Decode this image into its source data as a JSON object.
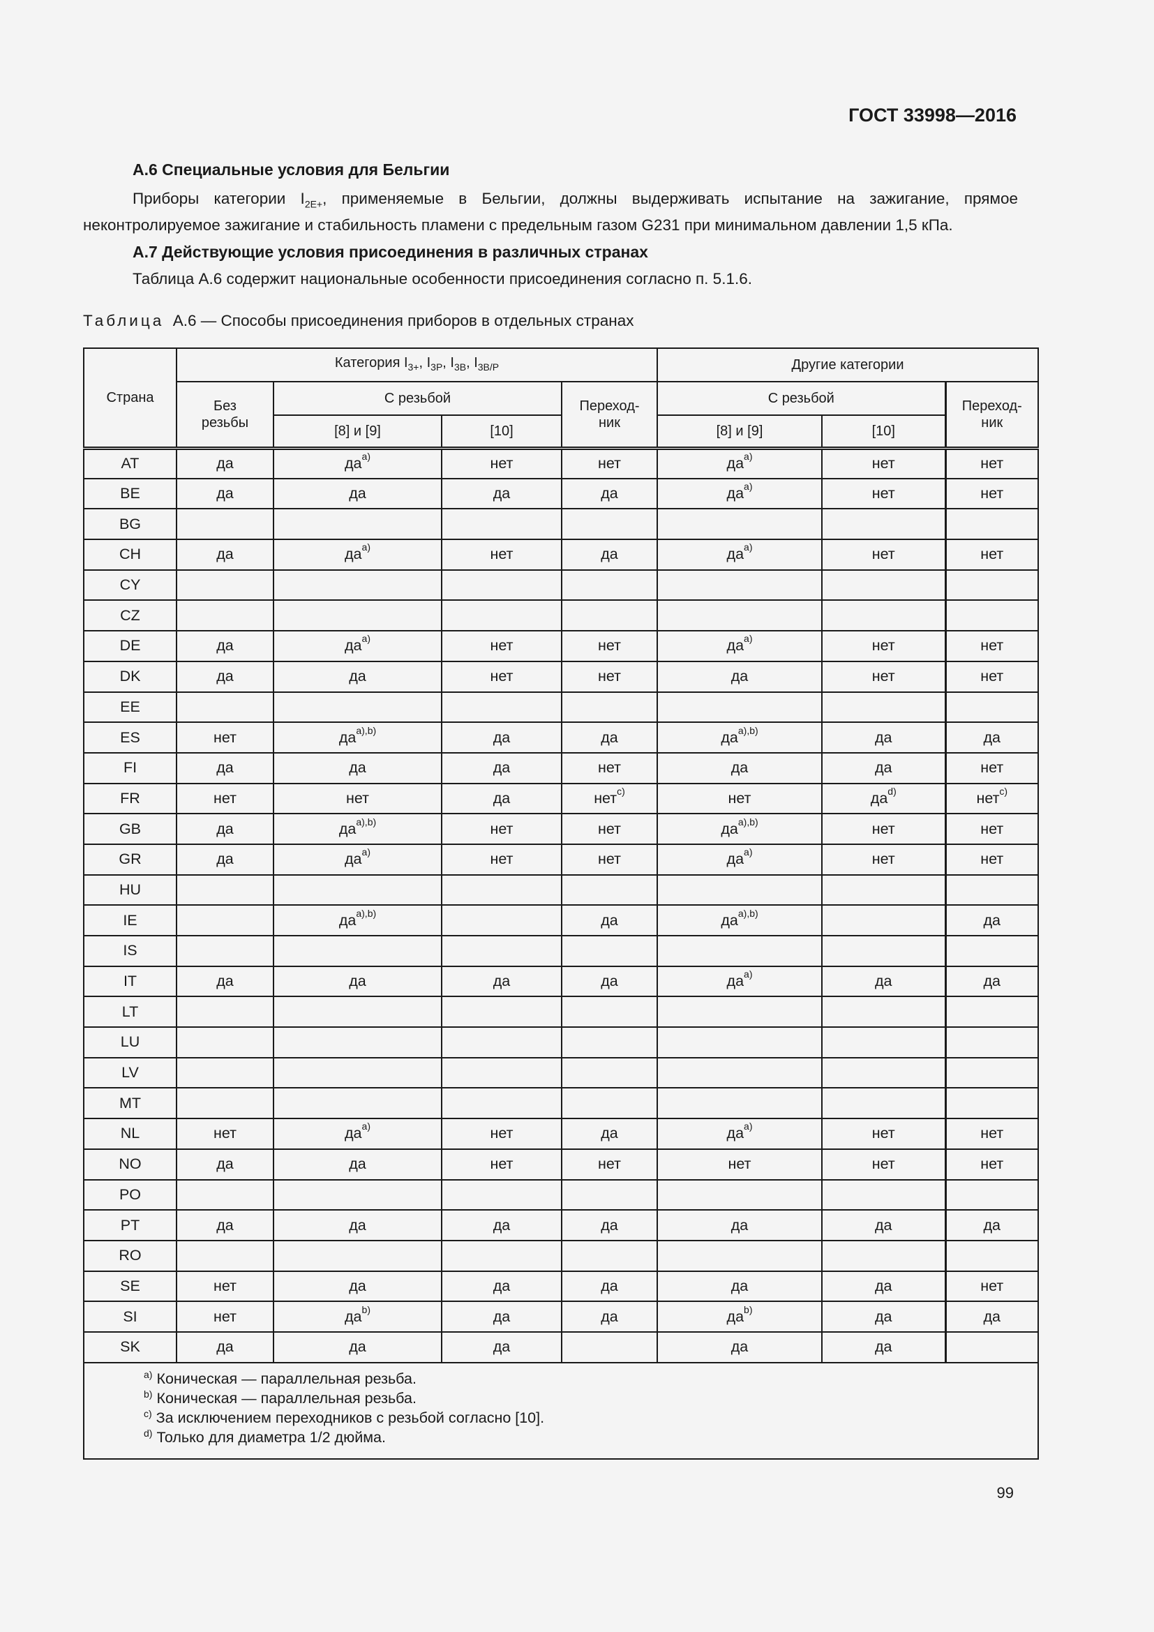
{
  "header": {
    "doc_id": "ГОСТ 33998—2016"
  },
  "section_a6": {
    "heading": "А.6  Специальные условия для Бельгии",
    "para_pre": "Приборы категории I",
    "para_sub": "2E+",
    "para_post": ", применяемые в Бельгии, должны выдерживать испытание на зажигание, прямое неконтролируемое зажигание и стабильность пламени с предельным газом G231 при минимальном давлении 1,5 кПа."
  },
  "section_a7": {
    "heading": "А.7  Действующие условия присоединения в различных странах",
    "para": "Таблица А.6 содержит национальные особенности присоединения согласно п. 5.1.6."
  },
  "table": {
    "caption_label": "Таблица",
    "caption_text": "А.6 — Способы присоединения приборов в отдельных странах",
    "header": {
      "country": "Страна",
      "cat3_pre": "Категория I",
      "cat3_subs": [
        "3+",
        "3P",
        "3B",
        "3B/P"
      ],
      "other": "Другие категории",
      "no_thread": "Без резьбы",
      "threaded": "С резьбой",
      "adapter": "Переход-ник",
      "std_8_9": "[8] и [9]",
      "std_10": "[10]"
    },
    "rows": [
      {
        "c": "AT",
        "v": [
          [
            "да"
          ],
          [
            "да",
            "a)"
          ],
          [
            "нет"
          ],
          [
            "нет"
          ],
          [
            "да",
            "a)"
          ],
          [
            "нет"
          ],
          [
            "нет"
          ]
        ]
      },
      {
        "c": "BE",
        "v": [
          [
            "да"
          ],
          [
            "да"
          ],
          [
            "да"
          ],
          [
            "да"
          ],
          [
            "да",
            "a)"
          ],
          [
            "нет"
          ],
          [
            "нет"
          ]
        ]
      },
      {
        "c": "BG",
        "v": [
          [
            ""
          ],
          [
            ""
          ],
          [
            ""
          ],
          [
            ""
          ],
          [
            ""
          ],
          [
            ""
          ],
          [
            ""
          ]
        ]
      },
      {
        "c": "CH",
        "v": [
          [
            "да"
          ],
          [
            "да",
            "a)"
          ],
          [
            "нет"
          ],
          [
            "да"
          ],
          [
            "да",
            "a)"
          ],
          [
            "нет"
          ],
          [
            "нет"
          ]
        ]
      },
      {
        "c": "CY",
        "v": [
          [
            ""
          ],
          [
            ""
          ],
          [
            ""
          ],
          [
            ""
          ],
          [
            ""
          ],
          [
            ""
          ],
          [
            ""
          ]
        ]
      },
      {
        "c": "CZ",
        "v": [
          [
            ""
          ],
          [
            ""
          ],
          [
            ""
          ],
          [
            ""
          ],
          [
            ""
          ],
          [
            ""
          ],
          [
            ""
          ]
        ]
      },
      {
        "c": "DE",
        "v": [
          [
            "да"
          ],
          [
            "да",
            "a)"
          ],
          [
            "нет"
          ],
          [
            "нет"
          ],
          [
            "да",
            "a)"
          ],
          [
            "нет"
          ],
          [
            "нет"
          ]
        ]
      },
      {
        "c": "DK",
        "v": [
          [
            "да"
          ],
          [
            "да"
          ],
          [
            "нет"
          ],
          [
            "нет"
          ],
          [
            "да"
          ],
          [
            "нет"
          ],
          [
            "нет"
          ]
        ]
      },
      {
        "c": "EE",
        "v": [
          [
            ""
          ],
          [
            ""
          ],
          [
            ""
          ],
          [
            ""
          ],
          [
            ""
          ],
          [
            ""
          ],
          [
            ""
          ]
        ]
      },
      {
        "c": "ES",
        "v": [
          [
            "нет"
          ],
          [
            "да",
            "a),b)"
          ],
          [
            "да"
          ],
          [
            "да"
          ],
          [
            "да",
            "a),b)"
          ],
          [
            "да"
          ],
          [
            "да"
          ]
        ]
      },
      {
        "c": "FI",
        "v": [
          [
            "да"
          ],
          [
            "да"
          ],
          [
            "да"
          ],
          [
            "нет"
          ],
          [
            "да"
          ],
          [
            "да"
          ],
          [
            "нет"
          ]
        ]
      },
      {
        "c": "FR",
        "v": [
          [
            "нет"
          ],
          [
            "нет"
          ],
          [
            "да"
          ],
          [
            "нет",
            "c)"
          ],
          [
            "нет"
          ],
          [
            "да",
            "d)"
          ],
          [
            "нет",
            "c)"
          ]
        ]
      },
      {
        "c": "GB",
        "v": [
          [
            "да"
          ],
          [
            "да",
            "a),b)"
          ],
          [
            "нет"
          ],
          [
            "нет"
          ],
          [
            "да",
            "a),b)"
          ],
          [
            "нет"
          ],
          [
            "нет"
          ]
        ]
      },
      {
        "c": "GR",
        "v": [
          [
            "да"
          ],
          [
            "да",
            "a)"
          ],
          [
            "нет"
          ],
          [
            "нет"
          ],
          [
            "да",
            "a)"
          ],
          [
            "нет"
          ],
          [
            "нет"
          ]
        ]
      },
      {
        "c": "HU",
        "v": [
          [
            ""
          ],
          [
            ""
          ],
          [
            ""
          ],
          [
            ""
          ],
          [
            ""
          ],
          [
            ""
          ],
          [
            ""
          ]
        ]
      },
      {
        "c": "IE",
        "v": [
          [
            ""
          ],
          [
            "да",
            "a),b)"
          ],
          [
            ""
          ],
          [
            "да"
          ],
          [
            "да",
            "a),b)"
          ],
          [
            ""
          ],
          [
            "да"
          ]
        ]
      },
      {
        "c": "IS",
        "v": [
          [
            ""
          ],
          [
            ""
          ],
          [
            ""
          ],
          [
            ""
          ],
          [
            ""
          ],
          [
            ""
          ],
          [
            ""
          ]
        ]
      },
      {
        "c": "IT",
        "v": [
          [
            "да"
          ],
          [
            "да"
          ],
          [
            "да"
          ],
          [
            "да"
          ],
          [
            "да",
            "a)"
          ],
          [
            "да"
          ],
          [
            "да"
          ]
        ]
      },
      {
        "c": "LT",
        "v": [
          [
            ""
          ],
          [
            ""
          ],
          [
            ""
          ],
          [
            ""
          ],
          [
            ""
          ],
          [
            ""
          ],
          [
            ""
          ]
        ]
      },
      {
        "c": "LU",
        "v": [
          [
            ""
          ],
          [
            ""
          ],
          [
            ""
          ],
          [
            ""
          ],
          [
            ""
          ],
          [
            ""
          ],
          [
            ""
          ]
        ]
      },
      {
        "c": "LV",
        "v": [
          [
            ""
          ],
          [
            ""
          ],
          [
            ""
          ],
          [
            ""
          ],
          [
            ""
          ],
          [
            ""
          ],
          [
            ""
          ]
        ]
      },
      {
        "c": "MT",
        "v": [
          [
            ""
          ],
          [
            ""
          ],
          [
            ""
          ],
          [
            ""
          ],
          [
            ""
          ],
          [
            ""
          ],
          [
            ""
          ]
        ]
      },
      {
        "c": "NL",
        "v": [
          [
            "нет"
          ],
          [
            "да",
            "a)"
          ],
          [
            "нет"
          ],
          [
            "да"
          ],
          [
            "да",
            "a)"
          ],
          [
            "нет"
          ],
          [
            "нет"
          ]
        ]
      },
      {
        "c": "NO",
        "v": [
          [
            "да"
          ],
          [
            "да"
          ],
          [
            "нет"
          ],
          [
            "нет"
          ],
          [
            "нет"
          ],
          [
            "нет"
          ],
          [
            "нет"
          ]
        ]
      },
      {
        "c": "PO",
        "v": [
          [
            ""
          ],
          [
            ""
          ],
          [
            ""
          ],
          [
            ""
          ],
          [
            ""
          ],
          [
            ""
          ],
          [
            ""
          ]
        ]
      },
      {
        "c": "PT",
        "v": [
          [
            "да"
          ],
          [
            "да"
          ],
          [
            "да"
          ],
          [
            "да"
          ],
          [
            "да"
          ],
          [
            "да"
          ],
          [
            "да"
          ]
        ]
      },
      {
        "c": "RO",
        "v": [
          [
            ""
          ],
          [
            ""
          ],
          [
            ""
          ],
          [
            ""
          ],
          [
            ""
          ],
          [
            ""
          ],
          [
            ""
          ]
        ]
      },
      {
        "c": "SE",
        "v": [
          [
            "нет"
          ],
          [
            "да"
          ],
          [
            "да"
          ],
          [
            "да"
          ],
          [
            "да"
          ],
          [
            "да"
          ],
          [
            "нет"
          ]
        ]
      },
      {
        "c": "SI",
        "v": [
          [
            "нет"
          ],
          [
            "да",
            "b)"
          ],
          [
            "да"
          ],
          [
            "да"
          ],
          [
            "да",
            "b)"
          ],
          [
            "да"
          ],
          [
            "да"
          ]
        ]
      },
      {
        "c": "SK",
        "v": [
          [
            "да"
          ],
          [
            "да"
          ],
          [
            "да"
          ],
          [
            ""
          ],
          [
            "да"
          ],
          [
            "да"
          ],
          [
            ""
          ]
        ]
      }
    ],
    "footnotes": [
      {
        "mark": "a)",
        "text": "Коническая — параллельная резьба."
      },
      {
        "mark": "b)",
        "text": "Коническая — параллельная резьба."
      },
      {
        "mark": "c)",
        "text": "За исключением переходников с резьбой согласно [10]."
      },
      {
        "mark": "d)",
        "text": "Только для диаметра 1/2 дюйма."
      }
    ]
  },
  "page_number": "99"
}
